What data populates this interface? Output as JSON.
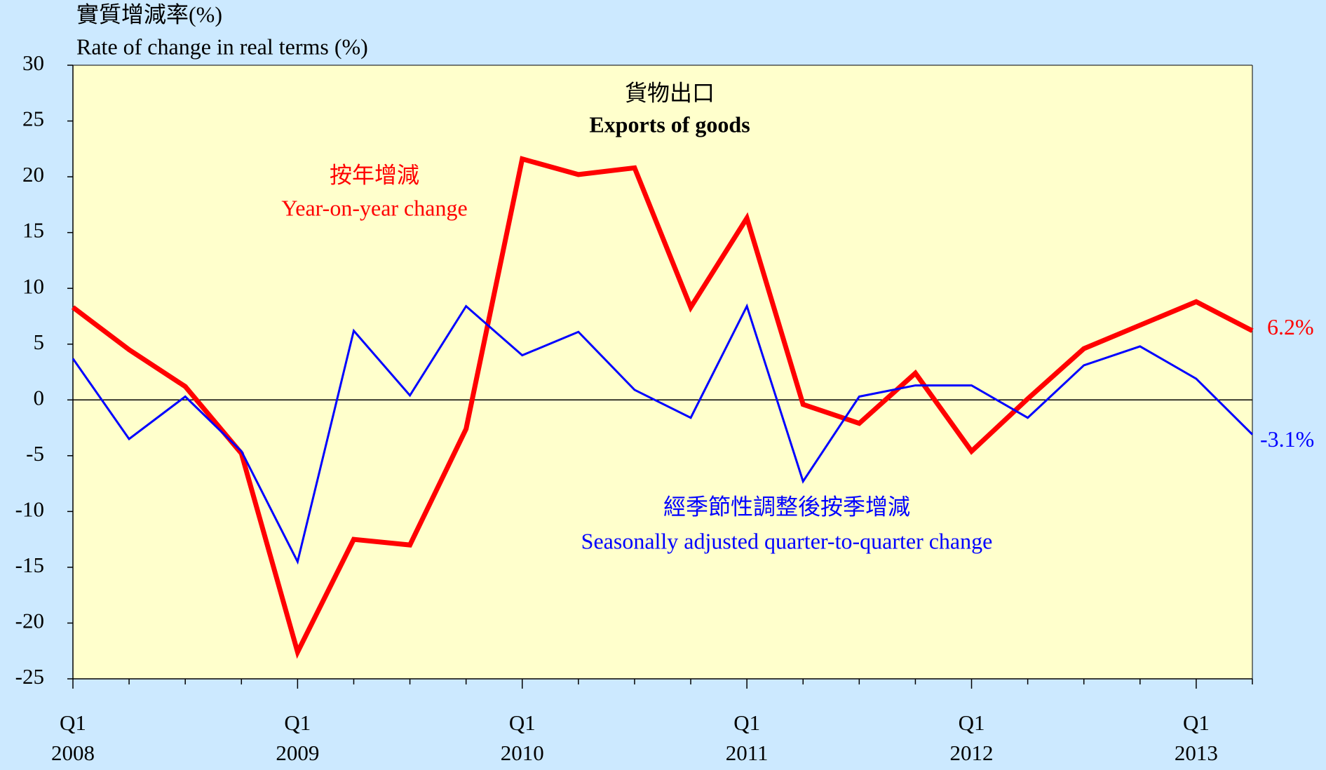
{
  "chart_data": {
    "type": "line",
    "title": "貨物出口",
    "subtitle": "Exports of goods",
    "y_axis_label": [
      "實質增減率(%)",
      "Rate of change in real terms (%)"
    ],
    "categories": [
      "Q1 2008",
      null,
      null,
      null,
      "Q1 2009",
      null,
      null,
      null,
      "Q1 2010",
      null,
      null,
      null,
      "Q1 2011",
      null,
      null,
      null,
      "Q1 2012",
      null,
      null,
      null,
      "Q1 2013",
      null
    ],
    "series": [
      {
        "name": "Year-on-year change",
        "name_zh": "按年增減",
        "color": "#ff0000",
        "values": [
          8.3,
          4.5,
          1.2,
          -4.8,
          -22.6,
          -12.5,
          -13.0,
          -2.6,
          21.6,
          20.2,
          20.8,
          8.3,
          16.3,
          -0.4,
          -2.1,
          2.4,
          -4.6,
          0.1,
          4.6,
          6.7,
          8.8,
          6.2
        ],
        "value_labels": [
          null,
          null,
          null,
          null,
          null,
          null,
          null,
          null,
          null,
          null,
          null,
          null,
          null,
          null,
          null,
          null,
          null,
          null,
          null,
          null,
          null,
          "6.2%"
        ]
      },
      {
        "name": "Seasonally adjusted quarter-to-quarter change",
        "name_zh": "經季節性調整後按季增減",
        "color": "#0000ff",
        "values": [
          3.7,
          -3.5,
          0.3,
          -4.6,
          -14.5,
          6.2,
          0.4,
          8.4,
          4.0,
          6.1,
          0.9,
          -1.6,
          8.4,
          -7.3,
          0.3,
          1.3,
          1.3,
          -1.6,
          3.1,
          4.8,
          1.9,
          -3.1
        ],
        "value_labels": [
          null,
          null,
          null,
          null,
          null,
          null,
          null,
          null,
          null,
          null,
          null,
          null,
          null,
          null,
          null,
          null,
          null,
          null,
          null,
          null,
          null,
          "-3.1%"
        ]
      }
    ],
    "ylim": [
      -25,
      30
    ],
    "yticks": [
      -25,
      -20,
      -15,
      -10,
      -5,
      0,
      5,
      10,
      15,
      20,
      25,
      30
    ],
    "grid": false
  }
}
